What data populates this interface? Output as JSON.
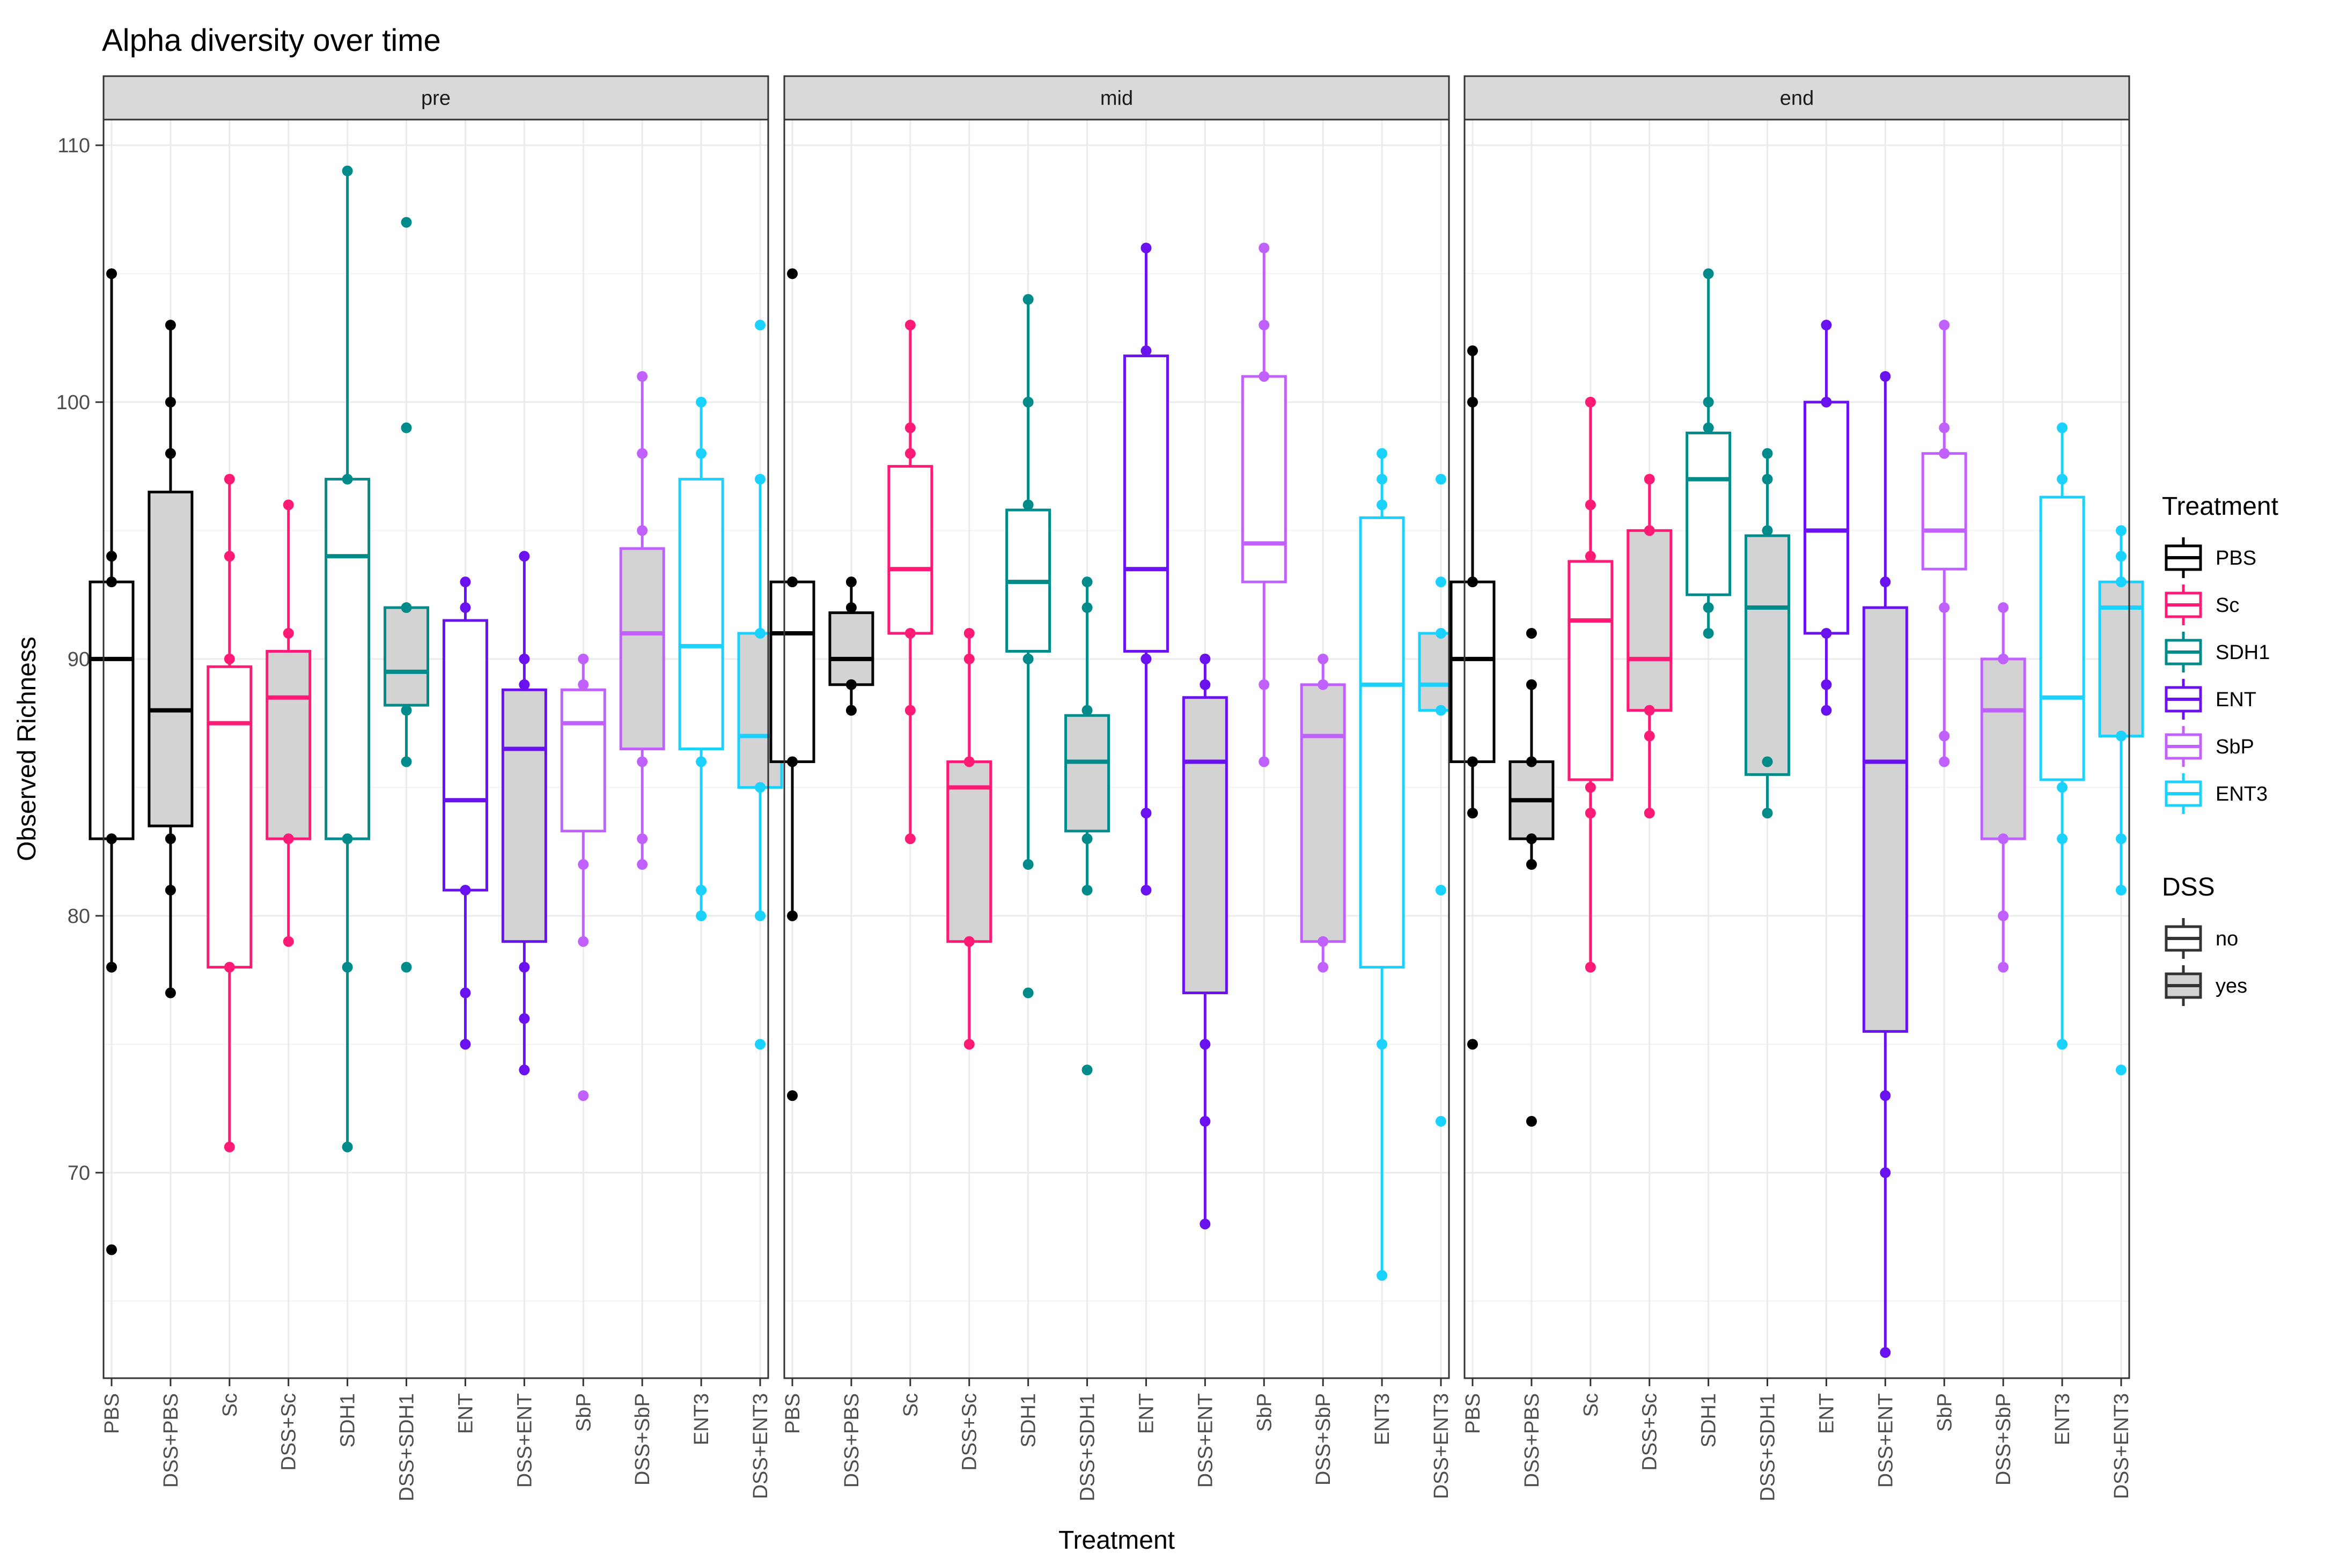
{
  "chart_data": {
    "type": "box",
    "title": "Alpha diversity over time",
    "xlabel": "Treatment",
    "ylabel": "Observed Richness",
    "ylim": [
      62,
      111
    ],
    "yticks": [
      70,
      80,
      90,
      100,
      110
    ],
    "grid": true,
    "legend_position": "right",
    "panels": [
      "pre",
      "mid",
      "end"
    ],
    "categories": [
      "PBS",
      "DSS+PBS",
      "Sc",
      "DSS+Sc",
      "SDH1",
      "DSS+SDH1",
      "ENT",
      "DSS+ENT",
      "SbP",
      "DSS+SbP",
      "ENT3",
      "DSS+ENT3"
    ],
    "groups": [
      {
        "name": "PBS",
        "color": "#000000"
      },
      {
        "name": "Sc",
        "color": "#ff1a75"
      },
      {
        "name": "SDH1",
        "color": "#008b8b"
      },
      {
        "name": "ENT",
        "color": "#6a11f0"
      },
      {
        "name": "SbP",
        "color": "#c061ff"
      },
      {
        "name": "ENT3",
        "color": "#1ad1ff"
      }
    ],
    "dss_fill": {
      "no": "#ffffff",
      "yes": "#d3d3d3"
    },
    "legend": {
      "treatment_title": "Treatment",
      "treatment_entries": [
        "PBS",
        "Sc",
        "SDH1",
        "ENT",
        "SbP",
        "ENT3"
      ],
      "dss_title": "DSS",
      "dss_entries": [
        "no",
        "yes"
      ]
    },
    "boxes": {
      "pre": [
        {
          "treatment": "PBS",
          "dss": "no",
          "min": 78,
          "q1": 83,
          "median": 90,
          "q3": 93,
          "max": 105,
          "points": [
            105,
            94,
            93,
            83,
            78,
            67
          ]
        },
        {
          "treatment": "PBS",
          "dss": "yes",
          "min": 77,
          "q1": 83.5,
          "median": 88,
          "q3": 96.5,
          "max": 103,
          "points": [
            103,
            100,
            98,
            83,
            81,
            77
          ]
        },
        {
          "treatment": "Sc",
          "dss": "no",
          "min": 71,
          "q1": 78,
          "median": 87.5,
          "q3": 89.7,
          "max": 97,
          "points": [
            97,
            94,
            90,
            78,
            71
          ]
        },
        {
          "treatment": "Sc",
          "dss": "yes",
          "min": 79,
          "q1": 83,
          "median": 88.5,
          "q3": 90.3,
          "max": 96,
          "points": [
            96,
            91,
            83,
            79
          ]
        },
        {
          "treatment": "SDH1",
          "dss": "no",
          "min": 71,
          "q1": 83,
          "median": 94,
          "q3": 97,
          "max": 109,
          "points": [
            109,
            97,
            83,
            78,
            71
          ]
        },
        {
          "treatment": "SDH1",
          "dss": "yes",
          "min": 86,
          "q1": 88.2,
          "median": 89.5,
          "q3": 92,
          "max": 92,
          "points": [
            107,
            99,
            92,
            88,
            86,
            78
          ]
        },
        {
          "treatment": "ENT",
          "dss": "no",
          "min": 75,
          "q1": 81,
          "median": 84.5,
          "q3": 91.5,
          "max": 93,
          "points": [
            93,
            92,
            81,
            77,
            75
          ]
        },
        {
          "treatment": "ENT",
          "dss": "yes",
          "min": 74,
          "q1": 79,
          "median": 86.5,
          "q3": 88.8,
          "max": 94,
          "points": [
            94,
            90,
            89,
            78,
            76,
            74
          ]
        },
        {
          "treatment": "SbP",
          "dss": "no",
          "min": 79,
          "q1": 83.3,
          "median": 87.5,
          "q3": 88.8,
          "max": 90,
          "points": [
            90,
            89,
            82,
            79,
            73
          ]
        },
        {
          "treatment": "SbP",
          "dss": "yes",
          "min": 82,
          "q1": 86.5,
          "median": 91,
          "q3": 94.3,
          "max": 101,
          "points": [
            101,
            98,
            95,
            86,
            83,
            82
          ]
        },
        {
          "treatment": "ENT3",
          "dss": "no",
          "min": 80,
          "q1": 86.5,
          "median": 90.5,
          "q3": 97,
          "max": 100,
          "points": [
            100,
            98,
            86,
            81,
            80
          ]
        },
        {
          "treatment": "ENT3",
          "dss": "yes",
          "min": 80,
          "q1": 85,
          "median": 87,
          "q3": 91,
          "max": 97,
          "points": [
            103,
            97,
            91,
            85,
            80,
            75
          ]
        }
      ],
      "mid": [
        {
          "treatment": "PBS",
          "dss": "no",
          "min": 80,
          "q1": 86,
          "median": 91,
          "q3": 93,
          "max": 93,
          "points": [
            105,
            93,
            86,
            80,
            73
          ]
        },
        {
          "treatment": "PBS",
          "dss": "yes",
          "min": 88,
          "q1": 89,
          "median": 90,
          "q3": 91.8,
          "max": 93,
          "points": [
            93,
            92,
            89,
            88
          ]
        },
        {
          "treatment": "Sc",
          "dss": "no",
          "min": 83,
          "q1": 91,
          "median": 93.5,
          "q3": 97.5,
          "max": 103,
          "points": [
            103,
            99,
            98,
            91,
            88,
            83
          ]
        },
        {
          "treatment": "Sc",
          "dss": "yes",
          "min": 75,
          "q1": 79,
          "median": 85,
          "q3": 86,
          "max": 91,
          "points": [
            91,
            90,
            86,
            79,
            75
          ]
        },
        {
          "treatment": "SDH1",
          "dss": "no",
          "min": 82,
          "q1": 90.3,
          "median": 93,
          "q3": 95.8,
          "max": 104,
          "points": [
            104,
            100,
            96,
            90,
            82,
            77
          ]
        },
        {
          "treatment": "SDH1",
          "dss": "yes",
          "min": 81,
          "q1": 83.3,
          "median": 86,
          "q3": 87.8,
          "max": 93,
          "points": [
            93,
            92,
            88,
            83,
            81,
            74
          ]
        },
        {
          "treatment": "ENT",
          "dss": "no",
          "min": 81,
          "q1": 90.3,
          "median": 93.5,
          "q3": 101.8,
          "max": 106,
          "points": [
            106,
            102,
            90,
            84,
            81
          ]
        },
        {
          "treatment": "ENT",
          "dss": "yes",
          "min": 68,
          "q1": 77,
          "median": 86,
          "q3": 88.5,
          "max": 90,
          "points": [
            90,
            89,
            75,
            72,
            68
          ]
        },
        {
          "treatment": "SbP",
          "dss": "no",
          "min": 86,
          "q1": 93,
          "median": 94.5,
          "q3": 101,
          "max": 106,
          "points": [
            106,
            103,
            101,
            89,
            86
          ]
        },
        {
          "treatment": "SbP",
          "dss": "yes",
          "min": 78,
          "q1": 79,
          "median": 87,
          "q3": 89,
          "max": 90,
          "points": [
            90,
            89,
            79,
            78
          ]
        },
        {
          "treatment": "ENT3",
          "dss": "no",
          "min": 66,
          "q1": 78,
          "median": 89,
          "q3": 95.5,
          "max": 98,
          "points": [
            98,
            97,
            96,
            75,
            66
          ]
        },
        {
          "treatment": "ENT3",
          "dss": "yes",
          "min": 88,
          "q1": 88,
          "median": 89,
          "q3": 91,
          "max": 91,
          "points": [
            97,
            93,
            91,
            88,
            81,
            72
          ]
        }
      ],
      "end": [
        {
          "treatment": "PBS",
          "dss": "no",
          "min": 84,
          "q1": 86,
          "median": 90,
          "q3": 93,
          "max": 102,
          "points": [
            102,
            100,
            93,
            86,
            84,
            75
          ]
        },
        {
          "treatment": "PBS",
          "dss": "yes",
          "min": 82,
          "q1": 83,
          "median": 84.5,
          "q3": 86,
          "max": 89,
          "points": [
            91,
            89,
            86,
            83,
            82,
            72
          ]
        },
        {
          "treatment": "Sc",
          "dss": "no",
          "min": 78,
          "q1": 85.3,
          "median": 91.5,
          "q3": 93.8,
          "max": 100,
          "points": [
            100,
            96,
            94,
            85,
            84,
            78
          ]
        },
        {
          "treatment": "Sc",
          "dss": "yes",
          "min": 84,
          "q1": 88,
          "median": 90,
          "q3": 95,
          "max": 97,
          "points": [
            97,
            95,
            88,
            87,
            84
          ]
        },
        {
          "treatment": "SDH1",
          "dss": "no",
          "min": 91,
          "q1": 92.5,
          "median": 97,
          "q3": 98.8,
          "max": 105,
          "points": [
            105,
            100,
            99,
            92,
            91
          ]
        },
        {
          "treatment": "SDH1",
          "dss": "yes",
          "min": 84,
          "q1": 85.5,
          "median": 92,
          "q3": 94.8,
          "max": 98,
          "points": [
            98,
            97,
            95,
            86,
            84
          ]
        },
        {
          "treatment": "ENT",
          "dss": "no",
          "min": 88,
          "q1": 91,
          "median": 95,
          "q3": 100,
          "max": 103,
          "points": [
            103,
            100,
            91,
            89,
            88
          ]
        },
        {
          "treatment": "ENT",
          "dss": "yes",
          "min": 63,
          "q1": 75.5,
          "median": 86,
          "q3": 92,
          "max": 101,
          "points": [
            101,
            93,
            73,
            70,
            63
          ]
        },
        {
          "treatment": "SbP",
          "dss": "no",
          "min": 86,
          "q1": 93.5,
          "median": 95,
          "q3": 98,
          "max": 103,
          "points": [
            103,
            99,
            98,
            92,
            87,
            86
          ]
        },
        {
          "treatment": "SbP",
          "dss": "yes",
          "min": 78,
          "q1": 83,
          "median": 88,
          "q3": 90,
          "max": 92,
          "points": [
            92,
            90,
            83,
            80,
            78
          ]
        },
        {
          "treatment": "ENT3",
          "dss": "no",
          "min": 75,
          "q1": 85.3,
          "median": 88.5,
          "q3": 96.3,
          "max": 99,
          "points": [
            99,
            97,
            85,
            83,
            75
          ]
        },
        {
          "treatment": "ENT3",
          "dss": "yes",
          "min": 81,
          "q1": 87,
          "median": 92,
          "q3": 93,
          "max": 95,
          "points": [
            95,
            94,
            93,
            87,
            83,
            81,
            74
          ]
        }
      ]
    }
  }
}
